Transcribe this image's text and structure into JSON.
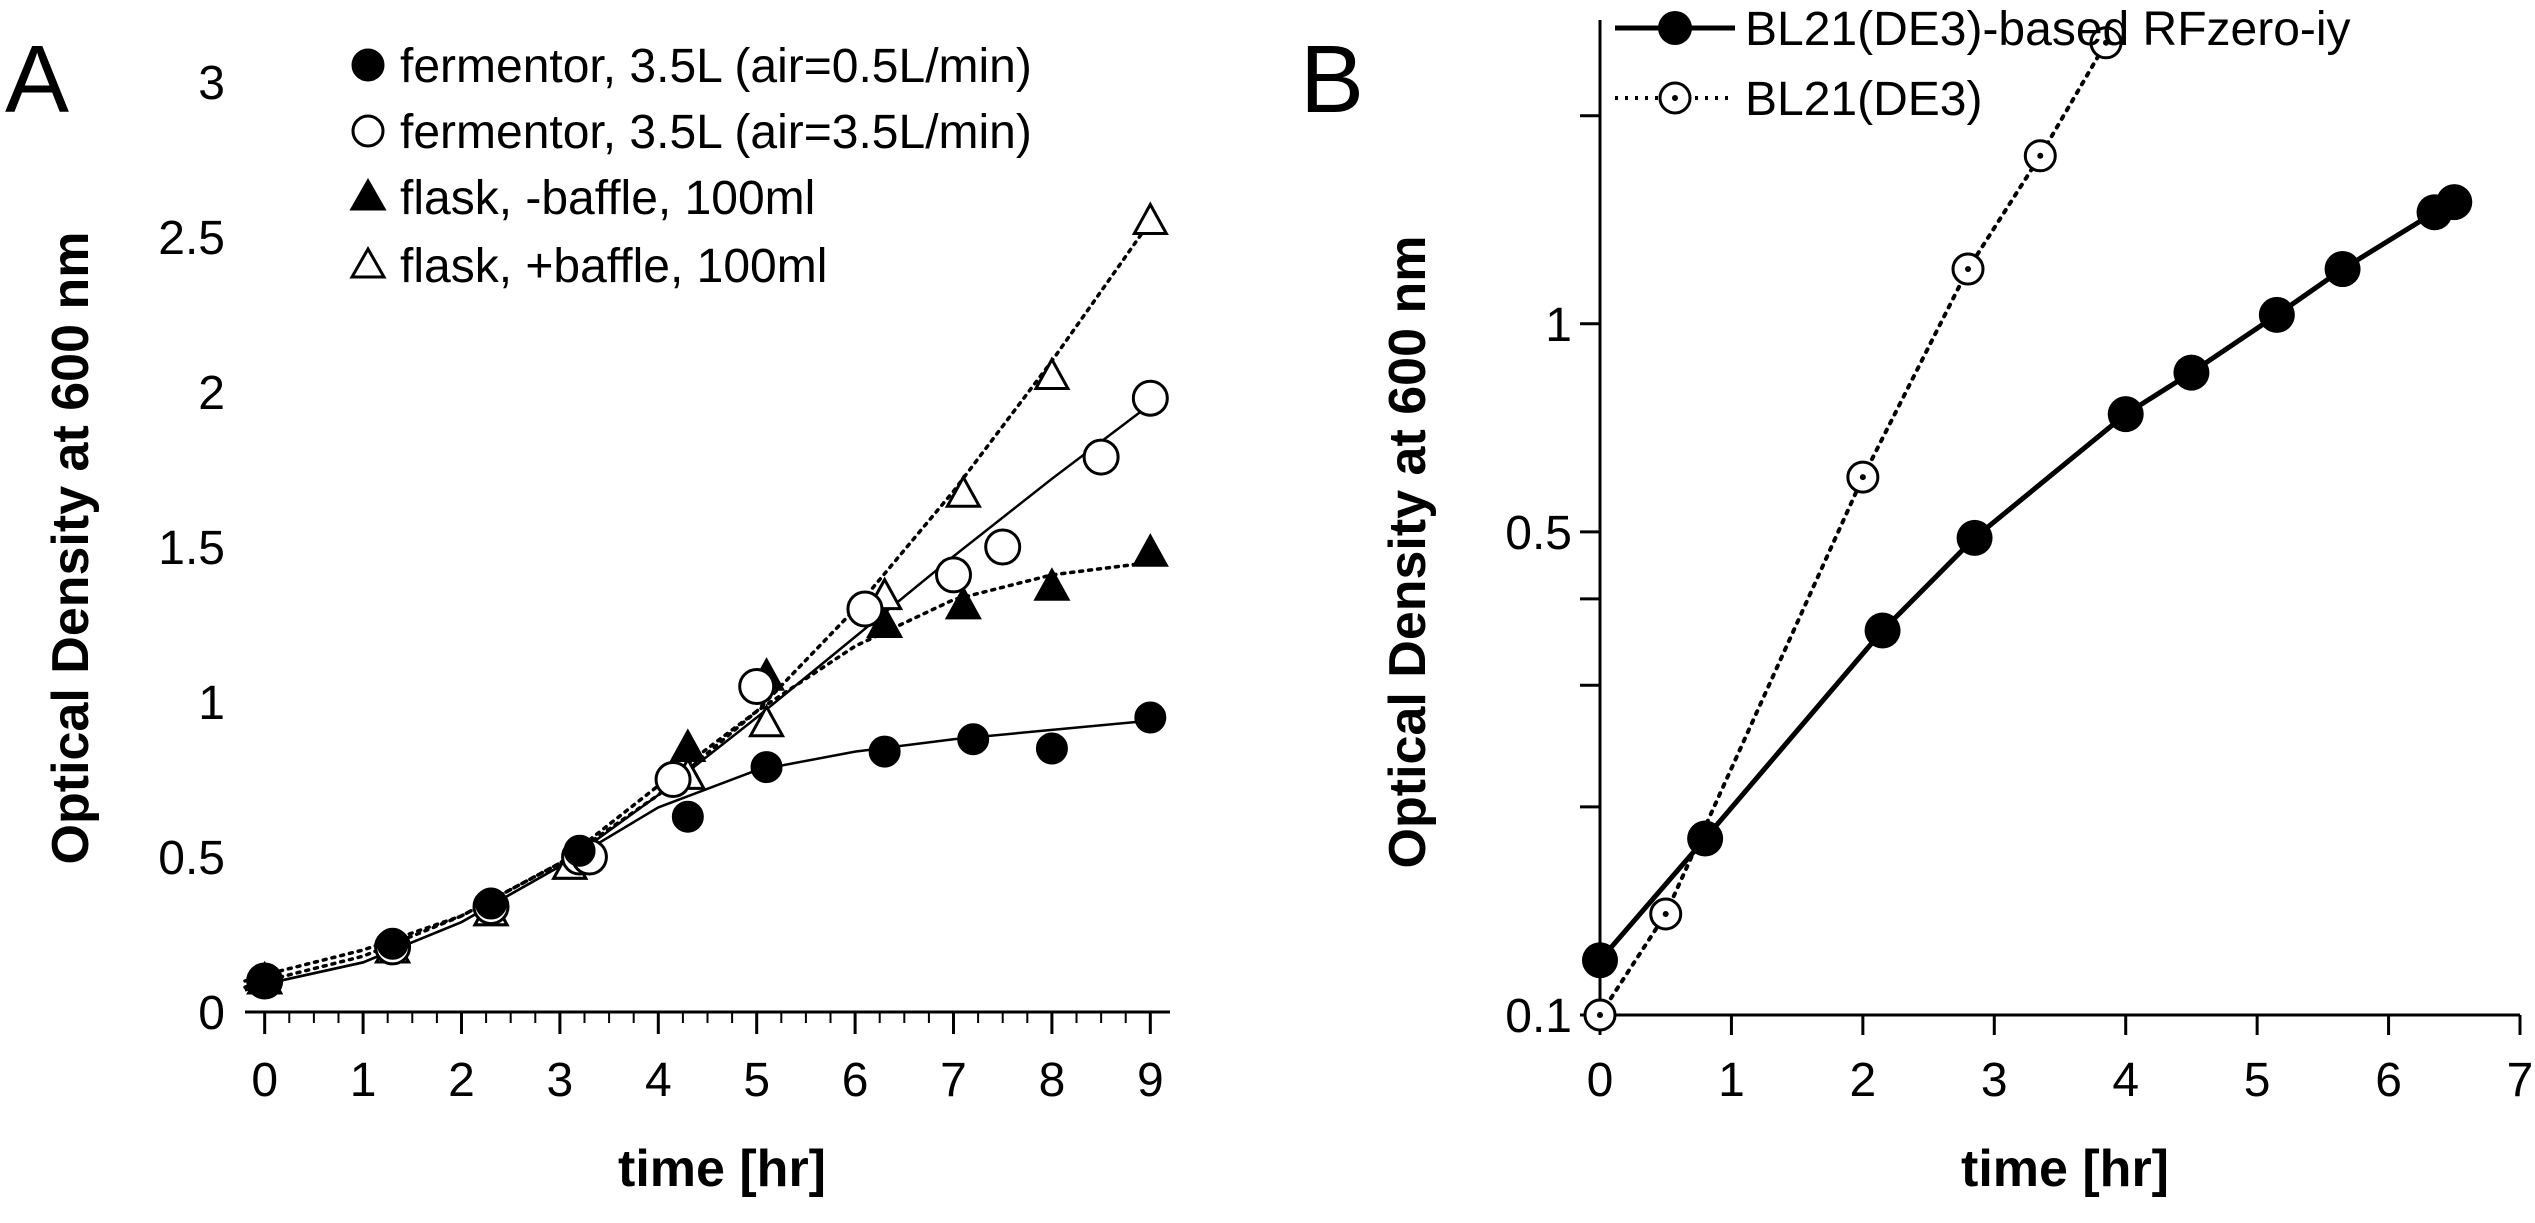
{
  "chart_data": [
    {
      "panel": "A",
      "type": "scatter",
      "xlabel": "time [hr]",
      "ylabel": "Optical Density at 600 nm",
      "xlim": [
        -0.2,
        9.2
      ],
      "ylim": [
        0,
        3
      ],
      "xticks": [
        0,
        1,
        2,
        3,
        4,
        5,
        6,
        7,
        8,
        9
      ],
      "yticks": [
        0,
        0.5,
        1,
        1.5,
        2,
        2.5,
        3
      ],
      "ytick_labels": [
        "0",
        "0.5",
        "1",
        "1.5",
        "2",
        "2.5",
        "3"
      ],
      "legend_position": "top-right",
      "series": [
        {
          "name": "fermentor, 3.5L (air=0.5L/min)",
          "marker": "circle-filled",
          "trend": "solid",
          "x": [
            0,
            1.3,
            2.3,
            3.2,
            4.3,
            5.1,
            6.3,
            7.2,
            8.0,
            9.0
          ],
          "y": [
            0.1,
            0.22,
            0.35,
            0.52,
            0.63,
            0.79,
            0.84,
            0.88,
            0.85,
            0.95
          ],
          "trend_x": [
            -0.2,
            0,
            1,
            2,
            3,
            4,
            5,
            6,
            7,
            8,
            9
          ],
          "trend_y": [
            0.07,
            0.09,
            0.16,
            0.29,
            0.47,
            0.66,
            0.78,
            0.84,
            0.88,
            0.91,
            0.94
          ]
        },
        {
          "name": "fermentor, 3.5L (air=3.5L/min)",
          "marker": "circle-open",
          "trend": "solid",
          "x": [
            0,
            1.3,
            2.3,
            3.2,
            3.3,
            4.15,
            5.0,
            6.1,
            7.0,
            7.5,
            8.5,
            9.0
          ],
          "y": [
            0.1,
            0.21,
            0.34,
            0.5,
            0.5,
            0.75,
            1.05,
            1.3,
            1.41,
            1.5,
            1.79,
            1.98
          ],
          "trend_x": [
            -0.2,
            0,
            1,
            2,
            3,
            4,
            5,
            6,
            7,
            8,
            9
          ],
          "trend_y": [
            0.07,
            0.09,
            0.16,
            0.29,
            0.47,
            0.7,
            0.95,
            1.21,
            1.47,
            1.72,
            1.96
          ]
        },
        {
          "name": "flask, -baffle, 100ml",
          "marker": "triangle-filled",
          "trend": "dotted",
          "x": [
            0,
            1.3,
            2.3,
            3.1,
            4.3,
            5.1,
            6.3,
            7.1,
            8.0,
            9.0
          ],
          "y": [
            0.1,
            0.2,
            0.32,
            0.47,
            0.85,
            1.08,
            1.25,
            1.31,
            1.37,
            1.48
          ],
          "trend_x": [
            -0.2,
            0,
            1,
            2,
            3,
            4,
            5,
            6,
            7,
            8,
            9
          ],
          "trend_y": [
            0.08,
            0.1,
            0.18,
            0.31,
            0.48,
            0.73,
            0.97,
            1.18,
            1.33,
            1.41,
            1.45
          ]
        },
        {
          "name": "flask, +baffle, 100ml",
          "marker": "triangle-open",
          "trend": "dotted",
          "x": [
            0,
            1.3,
            2.3,
            3.1,
            4.3,
            5.1,
            6.3,
            7.1,
            8.0,
            9.0
          ],
          "y": [
            0.1,
            0.2,
            0.32,
            0.47,
            0.76,
            0.93,
            1.34,
            1.67,
            2.05,
            2.55
          ],
          "trend_x": [
            -0.2,
            0,
            1,
            2,
            3,
            4,
            5,
            6,
            7,
            8,
            9
          ],
          "trend_y": [
            0.1,
            0.12,
            0.2,
            0.31,
            0.48,
            0.7,
            0.97,
            1.3,
            1.68,
            2.1,
            2.55
          ]
        }
      ]
    },
    {
      "panel": "B",
      "type": "line",
      "yscale": "log",
      "xlabel": "time [hr]",
      "ylabel": "Optical Density at 600 nm",
      "xlim": [
        0,
        7
      ],
      "ylim": [
        0.1,
        3
      ],
      "xticks": [
        0,
        1,
        2,
        3,
        4,
        5,
        6,
        7
      ],
      "yticks_labeled": [
        0.1,
        0.5,
        1
      ],
      "ytick_labels": [
        "0.1",
        "0.5",
        "1"
      ],
      "yticks_minor": [
        0.2,
        0.3,
        0.4,
        2,
        3
      ],
      "legend_position": "top",
      "series": [
        {
          "name": "BL21(DE3)-based RFzero-iy",
          "marker": "circle-filled",
          "line": "solid",
          "x": [
            0,
            0.8,
            2.15,
            2.85,
            4.0,
            4.5,
            5.15,
            5.65,
            6.35,
            6.5
          ],
          "y": [
            0.12,
            0.18,
            0.36,
            0.49,
            0.74,
            0.85,
            1.03,
            1.2,
            1.45,
            1.5
          ]
        },
        {
          "name": "BL21(DE3)",
          "marker": "circle-open-dot",
          "line": "dotted",
          "x": [
            0,
            0.5,
            2.0,
            2.8,
            3.35,
            3.85
          ],
          "y": [
            0.1,
            0.14,
            0.6,
            1.2,
            1.75,
            2.55
          ]
        }
      ]
    }
  ]
}
